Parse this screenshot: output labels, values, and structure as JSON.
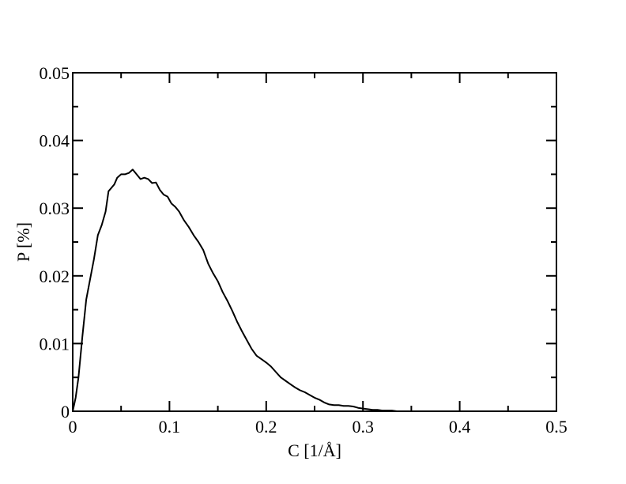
{
  "chart_data": {
    "type": "line",
    "xlabel": "C [1/Å]",
    "ylabel": "P [%]",
    "xlim": [
      0,
      0.5
    ],
    "ylim": [
      0,
      0.05
    ],
    "x_ticks": [
      0,
      0.1,
      0.2,
      0.3,
      0.4,
      0.5
    ],
    "x_tick_labels": [
      "0",
      "0.1",
      "0.2",
      "0.3",
      "0.4",
      "0.5"
    ],
    "y_ticks": [
      0,
      0.01,
      0.02,
      0.03,
      0.04,
      0.05
    ],
    "y_tick_labels": [
      "0",
      "0.01",
      "0.02",
      "0.03",
      "0.04",
      "0.05"
    ],
    "grid": false,
    "series": [
      {
        "color": "#000000",
        "x": [
          0,
          0.003,
          0.006,
          0.01,
          0.014,
          0.018,
          0.022,
          0.026,
          0.03,
          0.034,
          0.037,
          0.04,
          0.043,
          0.046,
          0.05,
          0.054,
          0.058,
          0.062,
          0.066,
          0.07,
          0.074,
          0.078,
          0.082,
          0.086,
          0.09,
          0.094,
          0.098,
          0.102,
          0.106,
          0.11,
          0.115,
          0.12,
          0.125,
          0.13,
          0.135,
          0.14,
          0.145,
          0.15,
          0.155,
          0.16,
          0.165,
          0.17,
          0.175,
          0.18,
          0.185,
          0.19,
          0.195,
          0.2,
          0.205,
          0.21,
          0.215,
          0.22,
          0.225,
          0.23,
          0.235,
          0.24,
          0.245,
          0.25,
          0.255,
          0.26,
          0.265,
          0.27,
          0.275,
          0.28,
          0.285,
          0.29,
          0.295,
          0.3,
          0.305,
          0.31,
          0.315,
          0.32,
          0.325,
          0.33,
          0.335,
          0.34,
          0.345
        ],
        "y": [
          0,
          0.002,
          0.005,
          0.011,
          0.0165,
          0.0195,
          0.0225,
          0.026,
          0.0275,
          0.0295,
          0.0325,
          0.033,
          0.0335,
          0.0345,
          0.035,
          0.035,
          0.0352,
          0.0357,
          0.035,
          0.0343,
          0.0345,
          0.0343,
          0.0337,
          0.0338,
          0.0327,
          0.032,
          0.0317,
          0.0307,
          0.0302,
          0.0295,
          0.0282,
          0.0272,
          0.026,
          0.025,
          0.0238,
          0.0218,
          0.0204,
          0.0192,
          0.0176,
          0.0163,
          0.0148,
          0.0132,
          0.0118,
          0.0105,
          0.0092,
          0.0082,
          0.0077,
          0.0072,
          0.0066,
          0.0058,
          0.005,
          0.0045,
          0.004,
          0.0035,
          0.0031,
          0.0028,
          0.0024,
          0.002,
          0.0017,
          0.0013,
          0.001,
          0.0009,
          0.0009,
          0.0008,
          0.0008,
          0.0007,
          0.0005,
          0.0004,
          0.0003,
          0.0002,
          0.0002,
          0.0001,
          0.0001,
          0.0001,
          0,
          0,
          0
        ]
      }
    ]
  }
}
